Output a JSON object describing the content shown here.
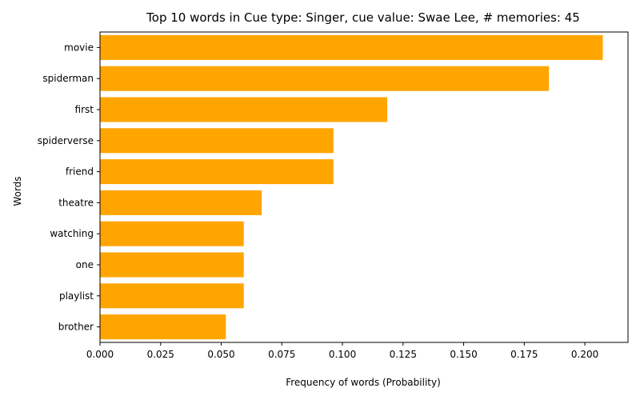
{
  "chart_data": {
    "type": "bar",
    "orientation": "horizontal",
    "title": "Top 10 words in Cue type: Singer, cue value: Swae Lee, # memories: 45",
    "xlabel": "Frequency of words (Probability)",
    "ylabel": "Words",
    "categories": [
      "movie",
      "spiderman",
      "first",
      "spiderverse",
      "friend",
      "theatre",
      "watching",
      "one",
      "playlist",
      "brother"
    ],
    "values": [
      0.2074,
      0.1852,
      0.1185,
      0.0963,
      0.0963,
      0.0667,
      0.0593,
      0.0593,
      0.0593,
      0.0519
    ],
    "xlim": [
      0,
      0.2178
    ],
    "xticks": [
      "0.000",
      "0.025",
      "0.050",
      "0.075",
      "0.100",
      "0.125",
      "0.150",
      "0.175",
      "0.200"
    ],
    "bar_color": "#FFA500",
    "grid": false,
    "legend": "none"
  }
}
